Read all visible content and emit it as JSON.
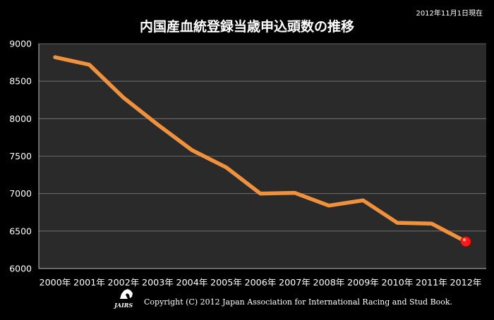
{
  "date_note": "2012年11月1日現在",
  "copyright": "Copyright (C) 2012 Japan Association for International Racing and Stud Book.",
  "logo": {
    "icon": "horse-logo-icon",
    "text": "JAIRS"
  },
  "colors": {
    "background": "#000000",
    "plot": "#2a2a2a",
    "grid": "#7a7a7a",
    "line": "#f0913c",
    "marker": "#ff1a1a"
  },
  "chart_data": {
    "type": "line",
    "title": "内国産血統登録当歳申込頭数の推移",
    "xlabel": "",
    "ylabel": "",
    "categories": [
      "2000年",
      "2001年",
      "2002年",
      "2003年",
      "2004年",
      "2005年",
      "2006年",
      "2007年",
      "2008年",
      "2009年",
      "2010年",
      "2011年",
      "2012年"
    ],
    "series": [
      {
        "values": [
          8820,
          8720,
          8280,
          7920,
          7580,
          7350,
          7000,
          7010,
          6840,
          6910,
          6610,
          6600,
          6360
        ]
      }
    ],
    "ylim": [
      6000,
      9000
    ],
    "yticks": [
      "6000",
      "6500",
      "7000",
      "7500",
      "8000",
      "8500",
      "9000"
    ],
    "grid": true,
    "legend": "none",
    "highlight_last_point": true
  }
}
